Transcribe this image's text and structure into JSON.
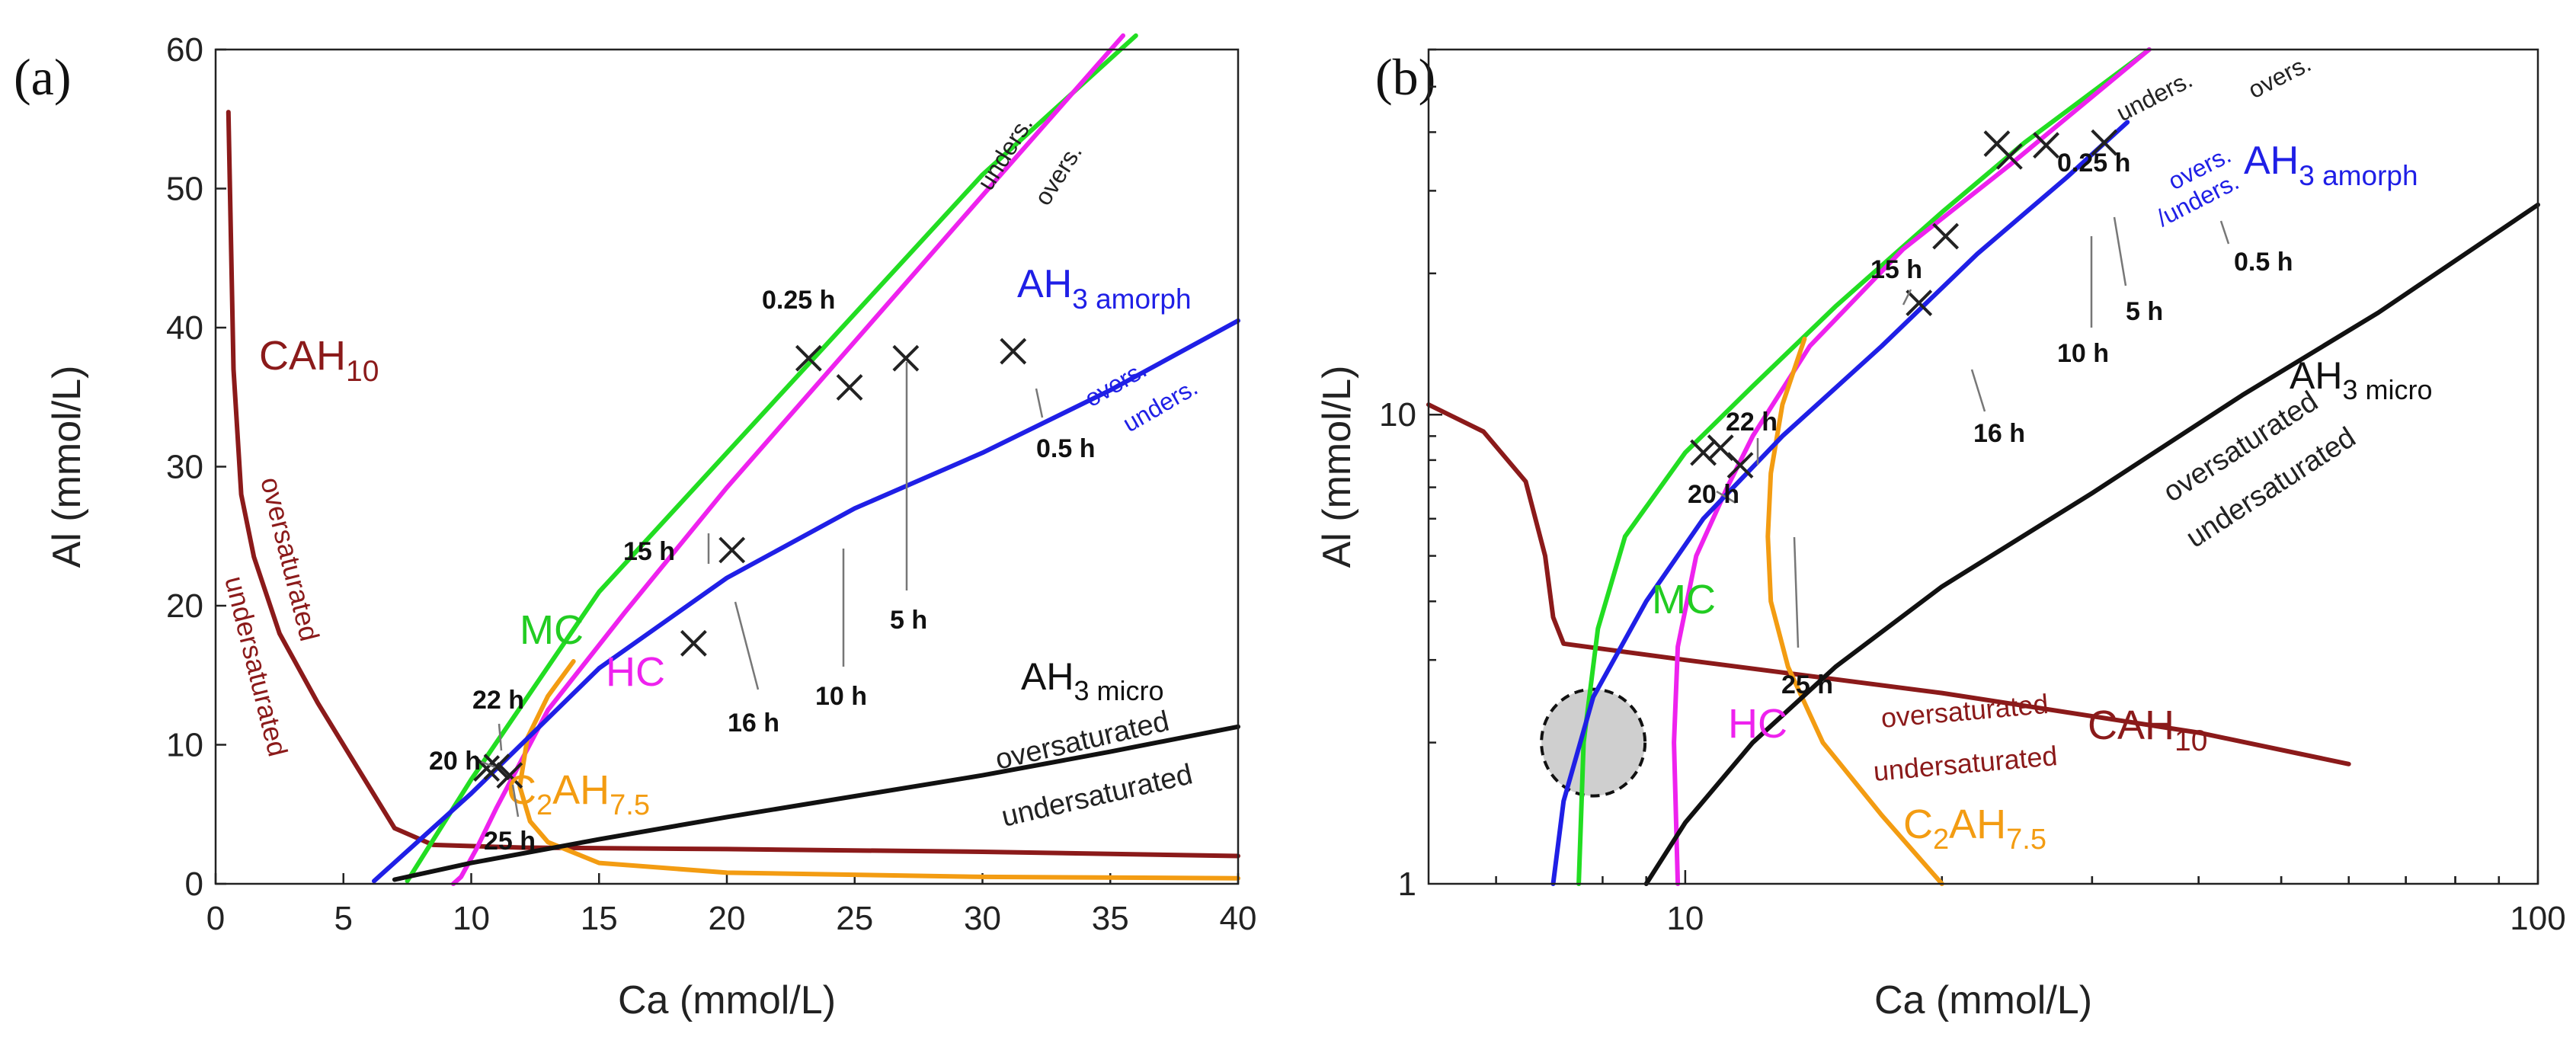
{
  "figure": {
    "panel_a_label": "(a)",
    "panel_b_label": "(b)"
  },
  "chart_data": [
    {
      "type": "line",
      "panel": "a",
      "scale": "linear",
      "xlabel": "Ca (mmol/L)",
      "ylabel": "Al (mmol/L)",
      "xlim": [
        0,
        40
      ],
      "ylim": [
        0,
        60
      ],
      "xticks": [
        0,
        5,
        10,
        15,
        20,
        25,
        30,
        35,
        40
      ],
      "yticks": [
        0,
        10,
        20,
        30,
        40,
        50,
        60
      ],
      "series": [
        {
          "name": "CAH10",
          "color": "#8b1a1a",
          "x": [
            0.5,
            0.7,
            1.0,
            1.5,
            2.5,
            4.0,
            5.5,
            7.0,
            8.5,
            12,
            20,
            30,
            40
          ],
          "y": [
            55.5,
            37,
            28,
            23.5,
            18,
            13,
            8.5,
            4.0,
            2.8,
            2.6,
            2.5,
            2.3,
            2.0
          ]
        },
        {
          "name": "MC",
          "color": "#22dd22",
          "x": [
            7.5,
            10,
            15,
            20,
            25,
            30,
            36
          ],
          "y": [
            0.2,
            7.5,
            21,
            31,
            41,
            51,
            61
          ]
        },
        {
          "name": "HC",
          "color": "#ee22ee",
          "x": [
            9.3,
            9.6,
            10.2,
            11,
            13,
            16,
            20,
            25,
            30,
            35.5
          ],
          "y": [
            0,
            0.5,
            2.5,
            5.5,
            12.5,
            19.5,
            28.5,
            39,
            49.5,
            61
          ]
        },
        {
          "name": "C2AH7.5",
          "color": "#f39c12",
          "x": [
            40,
            30,
            20,
            15,
            13,
            12.3,
            11.9,
            12.2,
            13,
            14
          ],
          "y": [
            0.4,
            0.5,
            0.8,
            1.5,
            3.0,
            4.5,
            7.0,
            10.5,
            13.5,
            16
          ]
        },
        {
          "name": "AH3 amorph",
          "color": "#1f1fe6",
          "x": [
            6.2,
            10,
            15,
            20,
            25,
            30,
            35,
            40
          ],
          "y": [
            0.2,
            6.5,
            15.5,
            22,
            27,
            31,
            35.5,
            40.5
          ]
        },
        {
          "name": "AH3 micro",
          "color": "#111111",
          "x": [
            7.0,
            10,
            15,
            20,
            25,
            30,
            35,
            40
          ],
          "y": [
            0.3,
            1.5,
            3.2,
            4.8,
            6.3,
            7.8,
            9.5,
            11.3
          ]
        }
      ],
      "points": [
        {
          "label": "0.25 h",
          "x": 23.2,
          "y": 37.8
        },
        {
          "label": "10 h",
          "x": 24.8,
          "y": 35.7
        },
        {
          "label": "5 h",
          "x": 27.0,
          "y": 37.8
        },
        {
          "label": "0.5 h",
          "x": 31.2,
          "y": 38.3
        },
        {
          "label": "15 h",
          "x": 20.2,
          "y": 24.0
        },
        {
          "label": "16 h",
          "x": 18.7,
          "y": 17.3
        },
        {
          "label": "22 h",
          "x": 11.0,
          "y": 8.4
        },
        {
          "label": "20 h",
          "x": 10.6,
          "y": 8.3
        },
        {
          "label": "25 h",
          "x": 11.5,
          "y": 7.8
        }
      ],
      "annotations": {
        "cah10": "CAH",
        "cah10_sub": "10",
        "mc": "MC",
        "hc": "HC",
        "c2ah": "C",
        "c2ah_sub1": "2",
        "c2ah_mid": "AH",
        "c2ah_sub2": "7.5",
        "ah3_amorph": "AH",
        "ah3_amorph_sub": "3 amorph",
        "ah3_micro": "AH",
        "ah3_micro_sub": "3 micro",
        "oversaturated": "oversaturated",
        "undersaturated": "undersaturated",
        "overs": "overs.",
        "unders": "unders."
      }
    },
    {
      "type": "line",
      "panel": "b",
      "scale": "log-log",
      "xlabel": "Ca (mmol/L)",
      "ylabel": "Al (mmol/L)",
      "xlim": [
        5,
        100
      ],
      "ylim": [
        1,
        60
      ],
      "xticks": [
        10,
        100
      ],
      "yticks": [
        1,
        10
      ],
      "series": [
        {
          "name": "CAH10",
          "color": "#8b1a1a",
          "x": [
            5,
            5.8,
            6.5,
            6.85,
            7.0,
            7.2,
            10,
            20,
            40,
            60
          ],
          "y": [
            10.5,
            9.2,
            7.2,
            5.0,
            3.7,
            3.25,
            3.0,
            2.55,
            2.1,
            1.8
          ]
        },
        {
          "name": "MC",
          "color": "#22dd22",
          "x": [
            7.5,
            7.6,
            7.9,
            8.5,
            10,
            12,
            15,
            20,
            25,
            35
          ],
          "y": [
            1.0,
            2.0,
            3.5,
            5.5,
            8.3,
            11.5,
            17,
            27,
            38,
            60
          ]
        },
        {
          "name": "HC",
          "color": "#ee22ee",
          "x": [
            9.8,
            9.7,
            9.8,
            10.3,
            11.2,
            12,
            14,
            18,
            24,
            35
          ],
          "y": [
            1.0,
            2.0,
            3.2,
            5.0,
            7.0,
            9.0,
            14,
            22.5,
            34,
            60
          ]
        },
        {
          "name": "C2AH7.5",
          "color": "#f39c12",
          "x": [
            20,
            17,
            14.5,
            13.2,
            12.6,
            12.5,
            12.6,
            13,
            13.8
          ],
          "y": [
            1.0,
            1.4,
            2.0,
            2.9,
            4.0,
            5.5,
            7.5,
            10.5,
            14.5
          ]
        },
        {
          "name": "AH3 amorph",
          "color": "#1f1fe6",
          "x": [
            7.0,
            7.2,
            7.8,
            9.0,
            10.5,
            13,
            17,
            22,
            28,
            33
          ],
          "y": [
            1.0,
            1.5,
            2.5,
            4.0,
            6.0,
            9.0,
            14,
            22,
            32,
            42
          ]
        },
        {
          "name": "AH3 micro",
          "color": "#111111",
          "x": [
            9.0,
            10,
            12,
            15,
            20,
            30,
            45,
            65,
            100
          ],
          "y": [
            1.0,
            1.35,
            2.0,
            2.9,
            4.3,
            6.8,
            11,
            16.5,
            28
          ]
        }
      ],
      "points": [
        {
          "label": "0.25 h",
          "x": 23.2,
          "y": 37.8
        },
        {
          "label": "10 h",
          "x": 24.0,
          "y": 35.5
        },
        {
          "label": "5 h",
          "x": 26.5,
          "y": 37.5
        },
        {
          "label": "0.5 h",
          "x": 31.0,
          "y": 38.0
        },
        {
          "label": "15 h",
          "x": 20.2,
          "y": 24.0
        },
        {
          "label": "16 h",
          "x": 18.8,
          "y": 17.3
        },
        {
          "label": "22 h",
          "x": 11.0,
          "y": 8.5
        },
        {
          "label": "20 h",
          "x": 10.5,
          "y": 8.3
        },
        {
          "label": "25 h",
          "x": 11.6,
          "y": 7.8
        }
      ],
      "circle": {
        "x": 7.8,
        "y": 2.0
      },
      "annotations": {
        "cah10": "CAH",
        "cah10_sub": "10",
        "mc": "MC",
        "hc": "HC",
        "c2ah": "C",
        "c2ah_sub1": "2",
        "c2ah_mid": "AH",
        "c2ah_sub2": "7.5",
        "ah3_amorph": "AH",
        "ah3_amorph_sub": "3 amorph",
        "ah3_micro": "AH",
        "ah3_micro_sub": "3 micro",
        "oversaturated": "oversaturated",
        "undersaturated": "undersaturated",
        "overs": "overs.",
        "unders": "unders.",
        "unders_slash": "/unders."
      }
    }
  ]
}
